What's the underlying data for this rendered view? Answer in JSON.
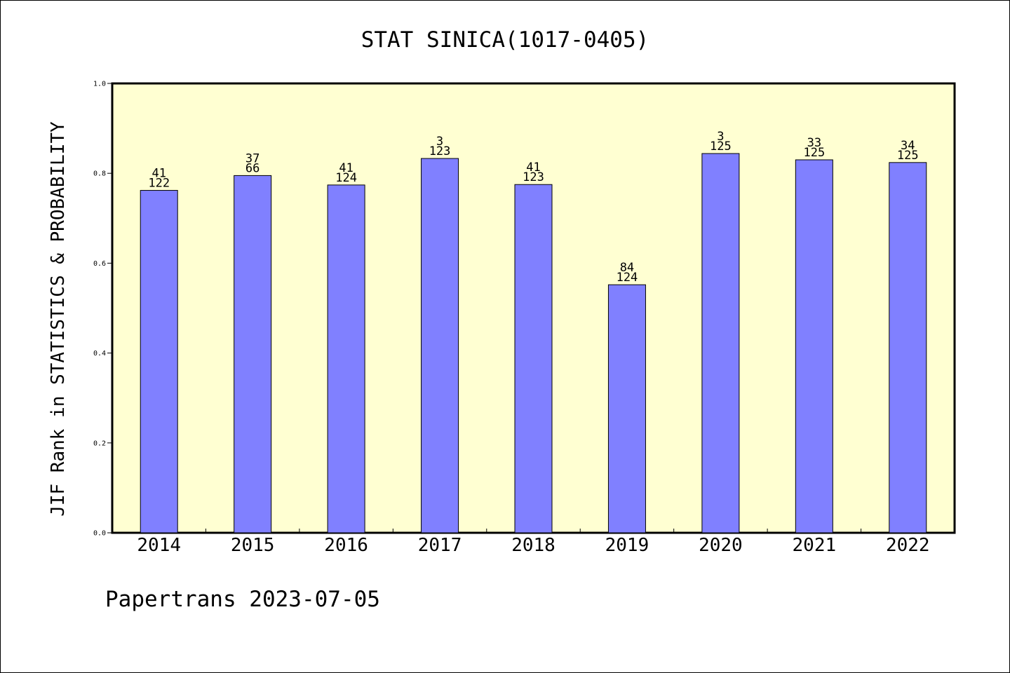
{
  "chart_data": {
    "type": "bar",
    "title": "STAT SINICA(1017-0405)",
    "ylabel": "JIF Rank in STATISTICS & PROBABILITY",
    "xlabel": "",
    "ylim": [
      0,
      1.0
    ],
    "yticks": [
      0.0,
      0.2,
      0.4,
      0.6,
      0.8,
      1.0
    ],
    "ytick_labels": [
      "0.0",
      "0.2",
      "0.4",
      "0.6",
      "0.8",
      "1.0"
    ],
    "categories": [
      "2014",
      "2015",
      "2016",
      "2017",
      "2018",
      "2019",
      "2020",
      "2021",
      "2022"
    ],
    "values": [
      0.762,
      0.795,
      0.774,
      0.833,
      0.775,
      0.552,
      0.844,
      0.83,
      0.824
    ],
    "rank_labels": [
      "41",
      "37",
      "41",
      "3",
      "41",
      "84",
      "3",
      "33",
      "34"
    ],
    "total_labels": [
      "122",
      "66",
      "124",
      "123",
      "123",
      "124",
      "125",
      "125",
      "125"
    ],
    "grid": false,
    "footer": "Papertrans 2023-07-05"
  },
  "colors": {
    "plot_background": "#ffffd2",
    "bar_fill": "#8080ff",
    "bar_stroke": "#000000",
    "axis": "#000000",
    "text": "#000000"
  }
}
